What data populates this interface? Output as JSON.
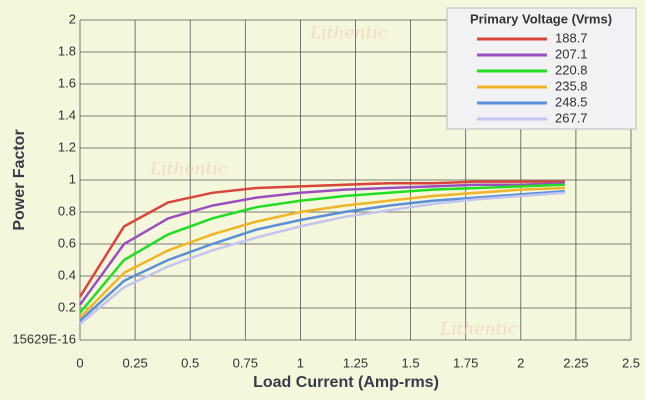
{
  "chart_data": {
    "type": "line",
    "watermark": "Lithentic",
    "x_label": "Load Current (Amp-rms)",
    "y_label": "Power Factor",
    "legend_title": "Primary Voltage (Vrms)",
    "legend": "top-right",
    "grid": true,
    "x": [
      0,
      0.2,
      0.4,
      0.6,
      0.8,
      1.0,
      1.2,
      1.4,
      1.6,
      1.8,
      2.0,
      2.2
    ],
    "xlim": [
      0,
      2.5
    ],
    "xticks": [
      0,
      0.25,
      0.5,
      0.75,
      1,
      1.25,
      1.5,
      1.75,
      2,
      2.25,
      2.5
    ],
    "ylim": [
      0,
      2
    ],
    "yticks": [
      {
        "value": 0,
        "label": "15629E-16"
      },
      0.2,
      0.4,
      0.6,
      0.8,
      1,
      1.2,
      1.4,
      1.6,
      1.8,
      2
    ],
    "series": [
      {
        "name": "188.7",
        "color": "#d9453a",
        "values": [
          0.27,
          0.71,
          0.86,
          0.92,
          0.95,
          0.96,
          0.97,
          0.98,
          0.98,
          0.99,
          0.99,
          0.99
        ]
      },
      {
        "name": "207.1",
        "color": "#9b4fbf",
        "values": [
          0.22,
          0.6,
          0.76,
          0.84,
          0.89,
          0.92,
          0.94,
          0.95,
          0.96,
          0.97,
          0.97,
          0.98
        ]
      },
      {
        "name": "220.8",
        "color": "#22dd22",
        "values": [
          0.17,
          0.5,
          0.66,
          0.76,
          0.83,
          0.87,
          0.9,
          0.92,
          0.94,
          0.95,
          0.96,
          0.97
        ]
      },
      {
        "name": "235.8",
        "color": "#f0b428",
        "values": [
          0.14,
          0.42,
          0.56,
          0.66,
          0.74,
          0.8,
          0.84,
          0.87,
          0.9,
          0.92,
          0.94,
          0.95
        ]
      },
      {
        "name": "248.5",
        "color": "#5a8ed8",
        "values": [
          0.12,
          0.37,
          0.5,
          0.6,
          0.69,
          0.75,
          0.8,
          0.84,
          0.87,
          0.89,
          0.91,
          0.93
        ]
      },
      {
        "name": "267.7",
        "color": "#c4c4f0",
        "values": [
          0.1,
          0.33,
          0.46,
          0.56,
          0.64,
          0.71,
          0.77,
          0.81,
          0.85,
          0.88,
          0.9,
          0.92
        ]
      }
    ]
  }
}
